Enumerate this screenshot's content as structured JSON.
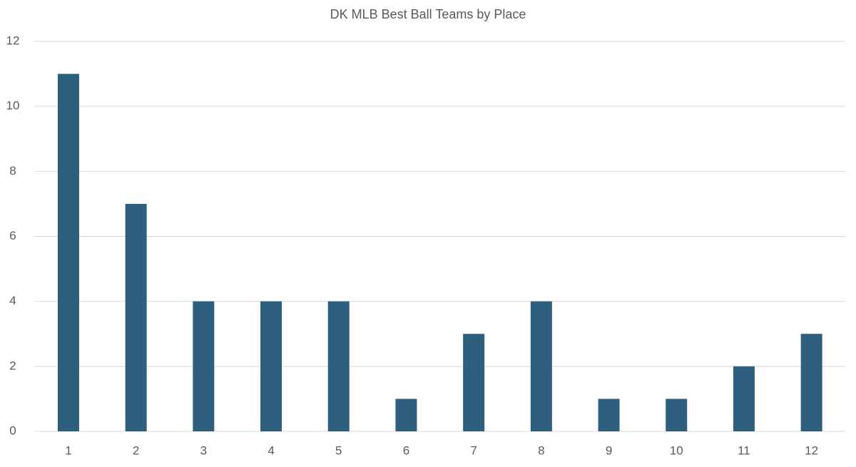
{
  "chart_data": {
    "type": "bar",
    "title": "DK MLB Best Ball Teams by Place",
    "categories": [
      "1",
      "2",
      "3",
      "4",
      "5",
      "6",
      "7",
      "8",
      "9",
      "10",
      "11",
      "12"
    ],
    "values": [
      11,
      7,
      4,
      4,
      4,
      1,
      3,
      4,
      1,
      1,
      2,
      3
    ],
    "color": "#2e5f7f",
    "ylim": [
      0,
      12
    ],
    "yticks": [
      0,
      2,
      4,
      6,
      8,
      10,
      12
    ],
    "grid": true
  }
}
